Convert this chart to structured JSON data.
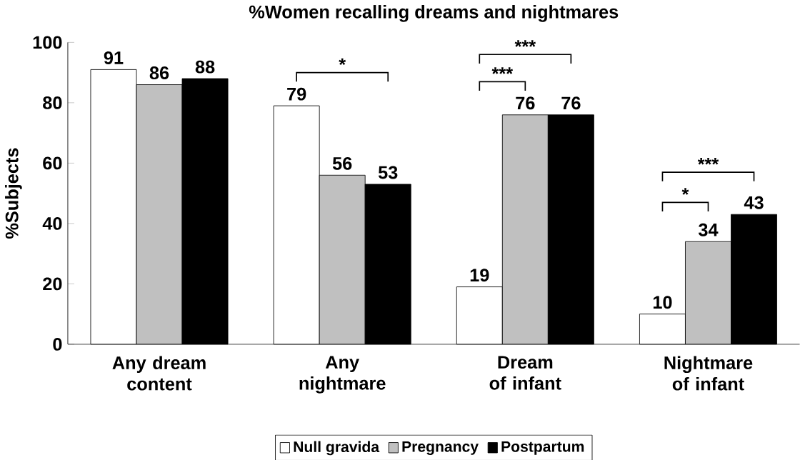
{
  "chart_data": {
    "type": "bar",
    "title": "%Women recalling dreams and nightmares",
    "ylabel": "%Subjects",
    "categories": [
      "Any dream content",
      "Any nightmare",
      "Dream of infant",
      "Nightmare of infant"
    ],
    "series": [
      {
        "name": "Null gravida",
        "color": "#ffffff",
        "values": [
          91,
          79,
          19,
          10
        ]
      },
      {
        "name": "Pregnancy",
        "color": "#c0c0c0",
        "values": [
          86,
          56,
          76,
          34
        ]
      },
      {
        "name": "Postpartum",
        "color": "#000000",
        "values": [
          88,
          53,
          76,
          43
        ]
      }
    ],
    "ylim": [
      0,
      100
    ],
    "yticks": [
      0,
      20,
      40,
      60,
      80,
      100
    ],
    "data_labels": true,
    "legend": "bottom",
    "grid": false,
    "annotations": [
      "*",
      "***",
      "***",
      "*",
      "***"
    ]
  }
}
